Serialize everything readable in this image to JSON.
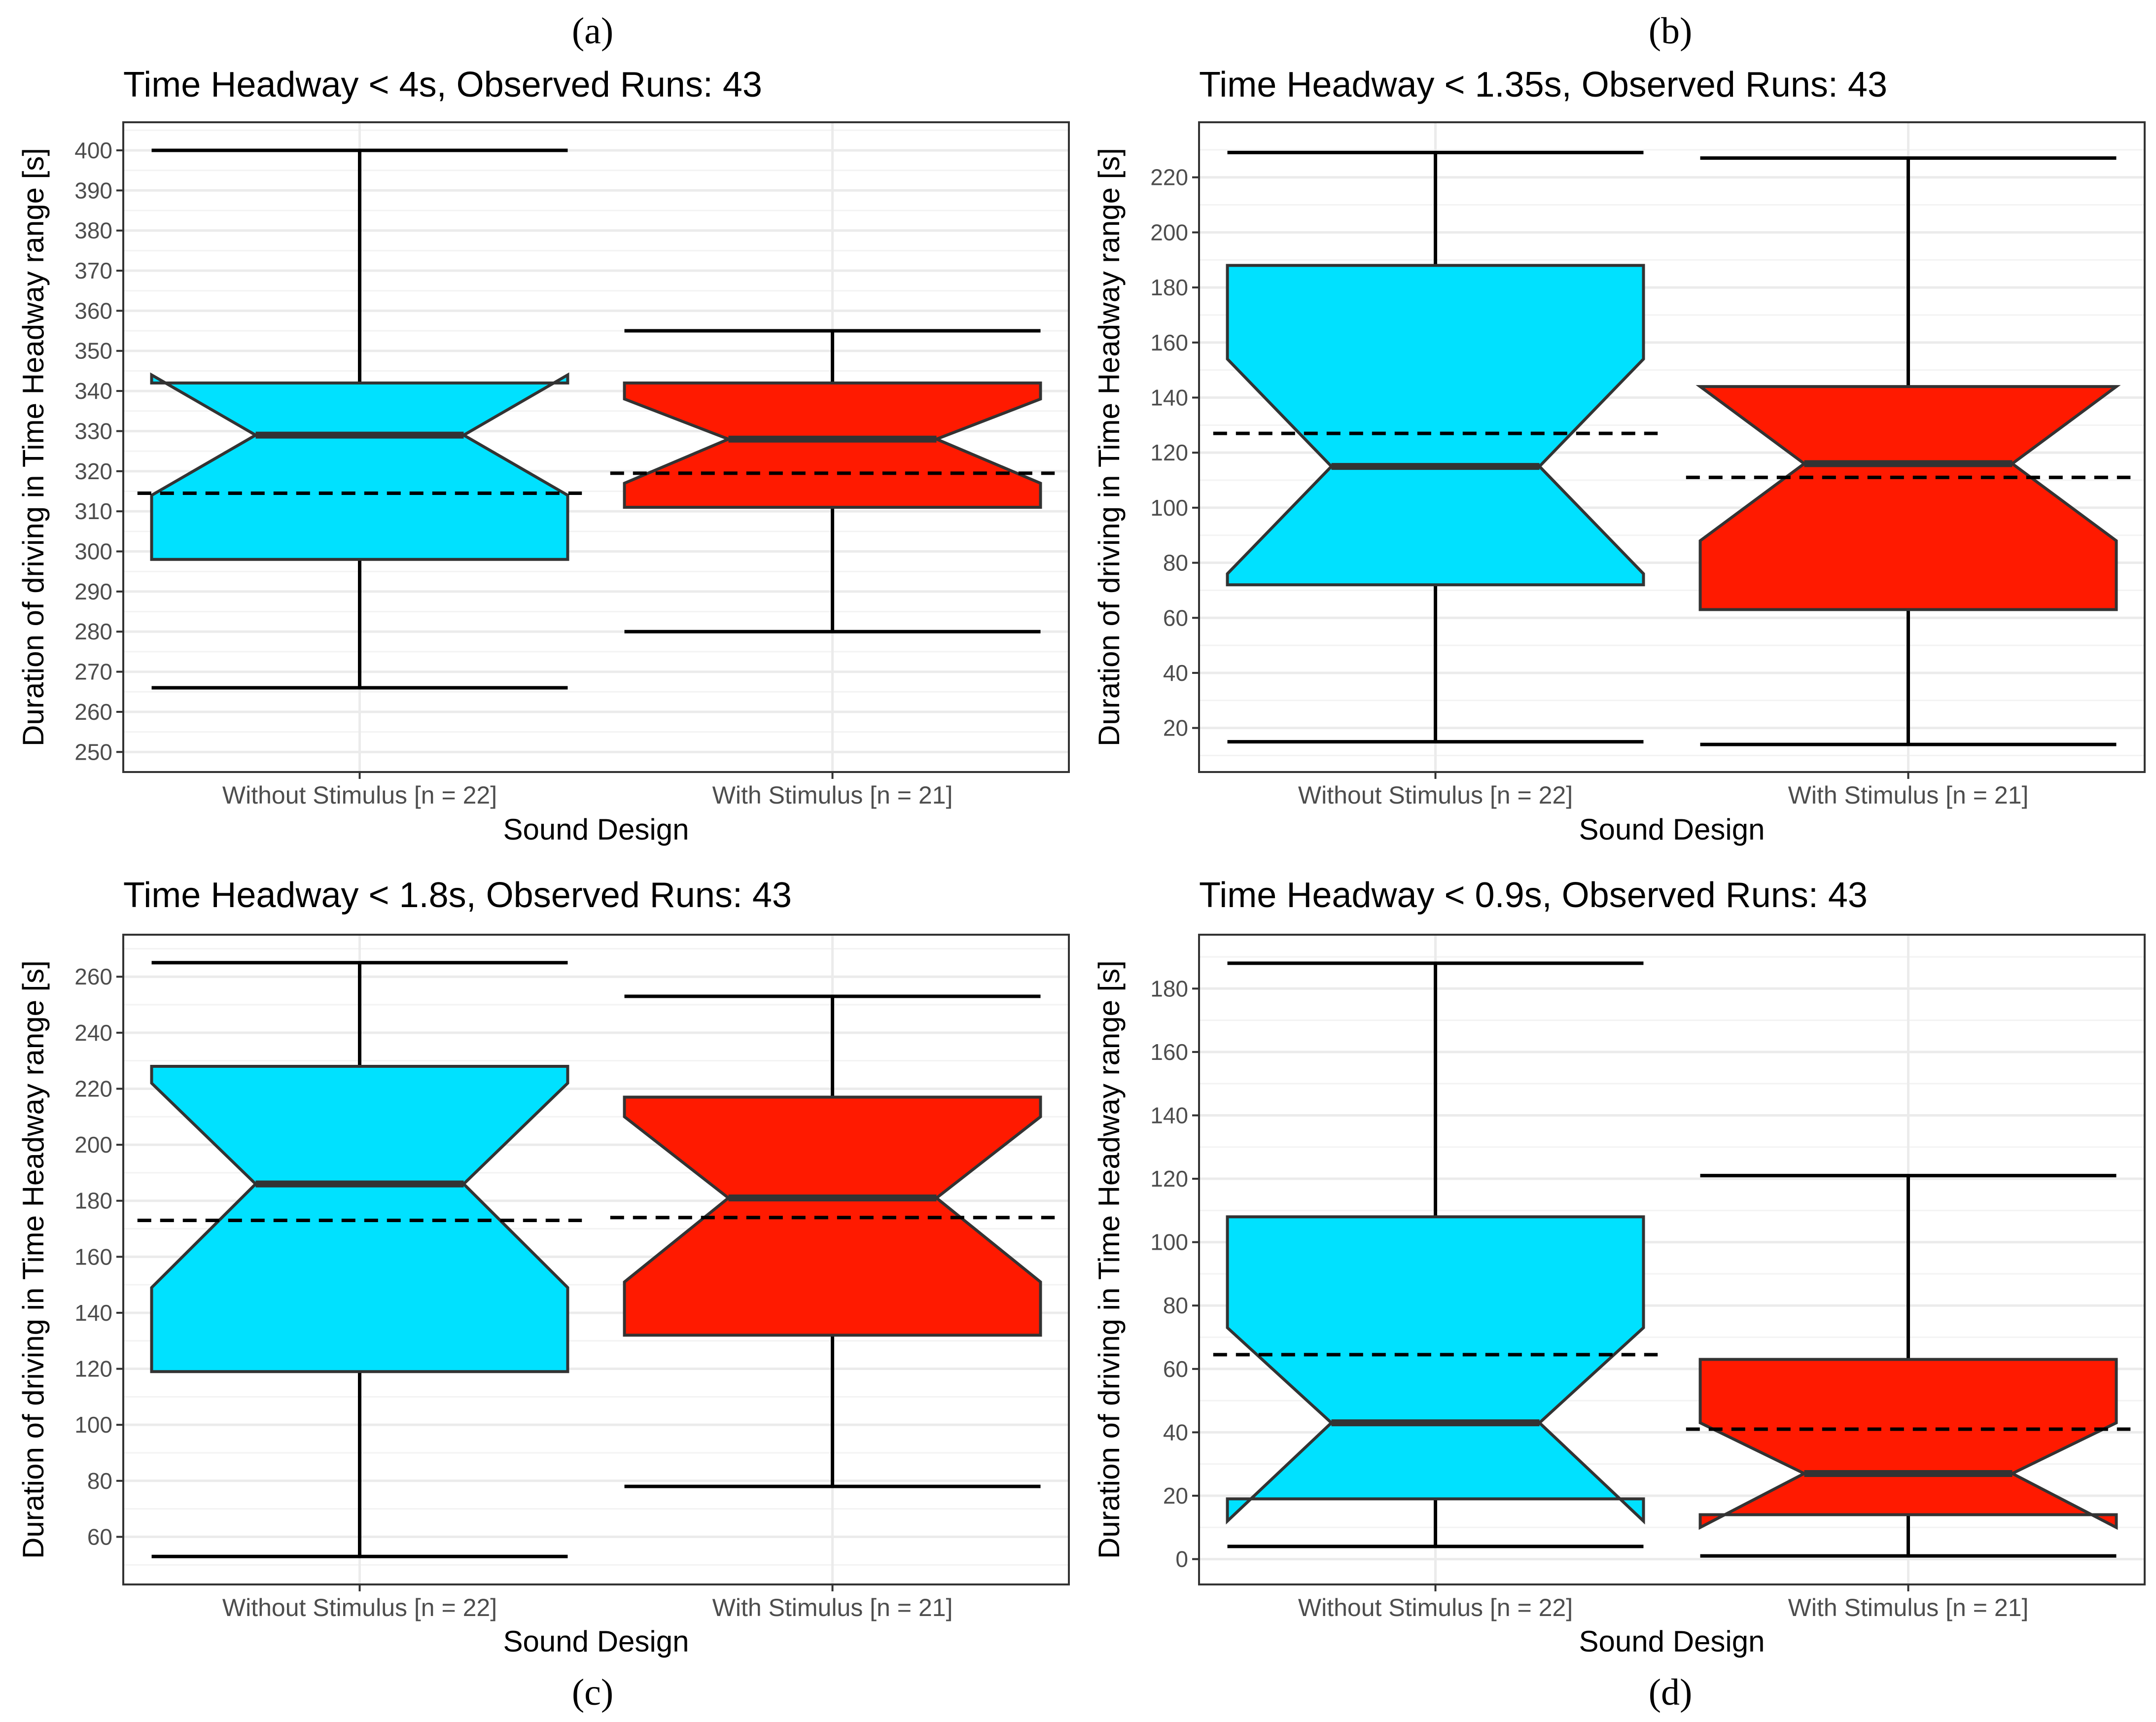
{
  "colors": {
    "without_stimulus": "#00e1ff",
    "with_stimulus": "#ff1a00"
  },
  "chart_data": [
    {
      "type": "boxplot",
      "panel_label": "(a)",
      "title": "Time Headway < 4s,  Observed Runs: 43",
      "xlabel": "Sound Design",
      "ylabel": "Duration of driving in Time Headway range [s]",
      "ylim": [
        245,
        407
      ],
      "yticks": [
        250,
        260,
        270,
        280,
        290,
        300,
        310,
        320,
        330,
        340,
        350,
        360,
        370,
        380,
        390,
        400
      ],
      "categories": [
        "Without Stimulus [n = 22]",
        "With Stimulus [n = 21]"
      ],
      "boxes": [
        {
          "name": "Without Stimulus",
          "whisker_low": 266,
          "q1": 298,
          "median": 329,
          "q3": 342,
          "whisker_high": 400,
          "notch_low": 314,
          "notch_high": 344,
          "mean": 314.5
        },
        {
          "name": "With Stimulus",
          "whisker_low": 280,
          "q1": 311,
          "median": 328,
          "q3": 342,
          "whisker_high": 355,
          "notch_low": 317,
          "notch_high": 338,
          "mean": 319.5
        }
      ]
    },
    {
      "type": "boxplot",
      "panel_label": "(b)",
      "title": "Time Headway < 1.35s,  Observed Runs: 43",
      "xlabel": "Sound Design",
      "ylabel": "Duration of driving in Time Headway range [s]",
      "ylim": [
        4,
        240
      ],
      "yticks": [
        20,
        40,
        60,
        80,
        100,
        120,
        140,
        160,
        180,
        200,
        220
      ],
      "categories": [
        "Without Stimulus [n = 22]",
        "With Stimulus [n = 21]"
      ],
      "boxes": [
        {
          "name": "Without Stimulus",
          "whisker_low": 15,
          "q1": 72,
          "median": 115,
          "q3": 188,
          "whisker_high": 229,
          "notch_low": 76,
          "notch_high": 154,
          "mean": 127
        },
        {
          "name": "With Stimulus",
          "whisker_low": 14,
          "q1": 63,
          "median": 116,
          "q3": 144,
          "whisker_high": 227,
          "notch_low": 88,
          "notch_high": 144,
          "mean": 111
        }
      ]
    },
    {
      "type": "boxplot",
      "panel_label": "(c)",
      "title": "Time Headway < 1.8s,  Observed Runs: 43",
      "xlabel": "Sound Design",
      "ylabel": "Duration of driving in Time Headway range [s]",
      "ylim": [
        43,
        275
      ],
      "yticks": [
        60,
        80,
        100,
        120,
        140,
        160,
        180,
        200,
        220,
        240,
        260
      ],
      "categories": [
        "Without Stimulus [n = 22]",
        "With Stimulus [n = 21]"
      ],
      "boxes": [
        {
          "name": "Without Stimulus",
          "whisker_low": 53,
          "q1": 119,
          "median": 186,
          "q3": 228,
          "whisker_high": 265,
          "notch_low": 149,
          "notch_high": 222,
          "mean": 173
        },
        {
          "name": "With Stimulus",
          "whisker_low": 78,
          "q1": 132,
          "median": 181,
          "q3": 217,
          "whisker_high": 253,
          "notch_low": 151,
          "notch_high": 210,
          "mean": 174
        }
      ]
    },
    {
      "type": "boxplot",
      "panel_label": "(d)",
      "title": "Time Headway < 0.9s,  Observed Runs: 43",
      "xlabel": "Sound Design",
      "ylabel": "Duration of driving in Time Headway range [s]",
      "ylim": [
        -8,
        197
      ],
      "yticks": [
        0,
        20,
        40,
        60,
        80,
        100,
        120,
        140,
        160,
        180
      ],
      "categories": [
        "Without Stimulus [n = 22]",
        "With Stimulus [n = 21]"
      ],
      "boxes": [
        {
          "name": "Without Stimulus",
          "whisker_low": 4,
          "q1": 19,
          "median": 43,
          "q3": 108,
          "whisker_high": 188,
          "notch_low": 12,
          "notch_high": 73,
          "mean": 64.5
        },
        {
          "name": "With Stimulus",
          "whisker_low": 1,
          "q1": 14,
          "median": 27,
          "q3": 63,
          "whisker_high": 121,
          "notch_low": 10,
          "notch_high": 43,
          "mean": 41
        }
      ]
    }
  ]
}
